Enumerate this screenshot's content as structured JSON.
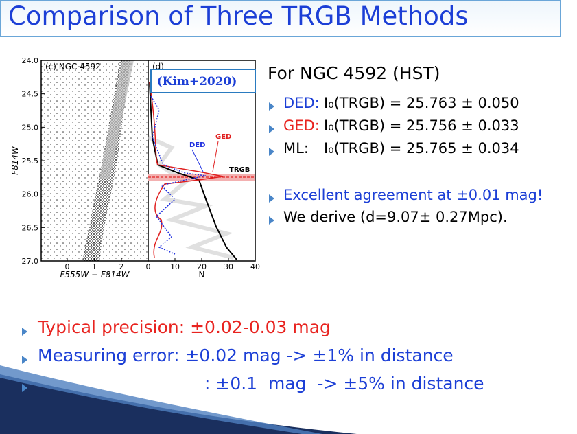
{
  "slide": {
    "title": "Comparison of Three TRGB Methods",
    "figure": {
      "cmd": {
        "label": "(c) NGC 4592",
        "yticks": [
          "24.0",
          "24.5",
          "25.0",
          "25.5",
          "26.0",
          "26.5",
          "27.0"
        ],
        "xticks": [
          "0",
          "1",
          "2"
        ],
        "xlabel": "F555W − F814W",
        "ylabel": "F814W"
      },
      "lf": {
        "label": "(d)",
        "xticks": [
          "0",
          "10",
          "20",
          "30",
          "40"
        ],
        "xlabel": "N",
        "reference": "(Kim+2020)",
        "annotations": {
          "ded": "DED",
          "ged": "GED",
          "trgb": "TRGB"
        }
      }
    },
    "results": {
      "heading": "For NGC 4592 (HST)",
      "items": [
        {
          "method": "DED:",
          "text": "I₀(TRGB) = 25.763 ± 0.050"
        },
        {
          "method": "GED:",
          "text": "I₀(TRGB) = 25.756 ± 0.033"
        },
        {
          "method": "ML:",
          "text": "I₀(TRGB) = 25.765 ± 0.034"
        }
      ],
      "agreement": "Excellent agreement at ±0.01 mag!",
      "distance": "We derive (d=9.07± 0.27Mpc)."
    },
    "notes": [
      "Typical precision: ±0.02-0.03 mag",
      "Measuring error: ±0.02 mag -> ±1% in distance",
      ": ±0.1  mag  -> ±5% in distance"
    ]
  }
}
